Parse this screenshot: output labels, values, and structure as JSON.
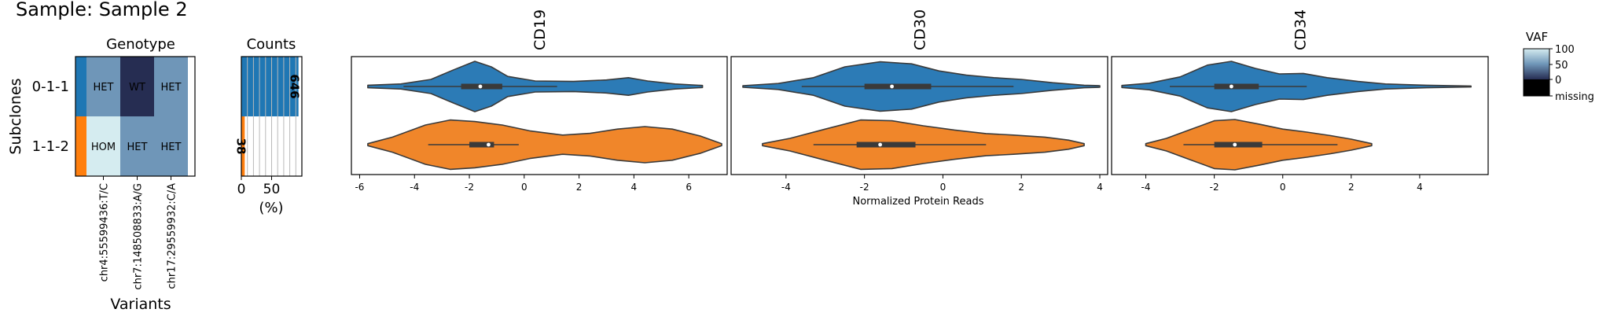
{
  "figure": {
    "title": "Sample: Sample 2",
    "ylabel": "Subclones",
    "xlabel_variants": "Variants"
  },
  "colors": {
    "clone_0": "#1f77b4",
    "clone_1": "#ff7f0e",
    "violin_0": "#2c7bb6",
    "violin_1": "#f0862a",
    "het": "#6f96b8",
    "wt": "#262d52",
    "hom": "#d5ecf0",
    "missing": "#000000"
  },
  "subclones": [
    "0-1-1",
    "1-1-2"
  ],
  "genotype": {
    "title": "Genotype",
    "variants": [
      "chr4:55599436:T/C",
      "chr7:148508833:A/G",
      "chr17:29559932:C/A"
    ],
    "cells": [
      [
        "HET",
        "WT",
        "HET"
      ],
      [
        "HOM",
        "HET",
        "HET"
      ]
    ]
  },
  "counts": {
    "title": "Counts",
    "xlabel": "(%)",
    "xticks": [
      0,
      50
    ],
    "xlim": [
      0,
      100
    ]
  },
  "colorbar": {
    "title": "VAF",
    "ticks": [
      "100",
      "50",
      "0",
      "missing"
    ]
  },
  "protein_xlabel": "Normalized Protein Reads",
  "chart_data": [
    {
      "type": "bar",
      "title": "Counts",
      "orientation": "horizontal",
      "categories": [
        "0-1-1",
        "1-1-2"
      ],
      "values": [
        94.4,
        5.6
      ],
      "labels": [
        "646",
        "38"
      ],
      "xlabel": "(%)",
      "xlim": [
        0,
        100
      ]
    },
    {
      "type": "heatmap",
      "title": "Genotype",
      "rows": [
        "0-1-1",
        "1-1-2"
      ],
      "columns": [
        "chr4:55599436:T/C",
        "chr7:148508833:A/G",
        "chr17:29559932:C/A"
      ],
      "values": [
        [
          "HET",
          "WT",
          "HET"
        ],
        [
          "HOM",
          "HET",
          "HET"
        ]
      ],
      "xlabel": "Variants",
      "ylabel": "Subclones"
    },
    {
      "type": "violin",
      "title": "CD19",
      "xlim": [
        -6.3,
        7.4
      ],
      "xticks": [
        -6,
        -4,
        -2,
        0,
        2,
        4,
        6
      ],
      "series": [
        {
          "name": "0-1-1",
          "profile": [
            [
              -5.7,
              0.05
            ],
            [
              -4.5,
              0.1
            ],
            [
              -3.4,
              0.28
            ],
            [
              -2.6,
              0.65
            ],
            [
              -1.8,
              1.0
            ],
            [
              -1.2,
              0.78
            ],
            [
              -0.6,
              0.4
            ],
            [
              0.4,
              0.22
            ],
            [
              1.8,
              0.2
            ],
            [
              3.0,
              0.26
            ],
            [
              3.8,
              0.35
            ],
            [
              4.5,
              0.22
            ],
            [
              5.5,
              0.1
            ],
            [
              6.5,
              0.04
            ]
          ],
          "box": {
            "q1": -2.3,
            "median": -1.6,
            "q3": -0.8,
            "whisker_low": -4.4,
            "whisker_high": 1.2
          }
        },
        {
          "name": "1-1-2",
          "profile": [
            [
              -5.7,
              0.04
            ],
            [
              -4.8,
              0.3
            ],
            [
              -3.6,
              0.78
            ],
            [
              -2.7,
              0.98
            ],
            [
              -1.8,
              0.92
            ],
            [
              -0.8,
              0.78
            ],
            [
              0.2,
              0.55
            ],
            [
              1.4,
              0.38
            ],
            [
              2.4,
              0.45
            ],
            [
              3.4,
              0.62
            ],
            [
              4.4,
              0.72
            ],
            [
              5.4,
              0.62
            ],
            [
              6.4,
              0.35
            ],
            [
              7.2,
              0.04
            ]
          ],
          "box": {
            "q1": -2.0,
            "median": -1.3,
            "q3": -1.1,
            "whisker_low": -3.5,
            "whisker_high": -0.2
          }
        }
      ]
    },
    {
      "type": "violin",
      "title": "CD30",
      "xlim": [
        -5.4,
        4.2
      ],
      "xticks": [
        -4,
        -2,
        0,
        2,
        4
      ],
      "series": [
        {
          "name": "0-1-1",
          "profile": [
            [
              -5.1,
              0.03
            ],
            [
              -4.2,
              0.12
            ],
            [
              -3.3,
              0.35
            ],
            [
              -2.5,
              0.78
            ],
            [
              -1.6,
              0.98
            ],
            [
              -0.8,
              0.9
            ],
            [
              -0.1,
              0.62
            ],
            [
              0.6,
              0.45
            ],
            [
              1.3,
              0.35
            ],
            [
              2.0,
              0.28
            ],
            [
              2.8,
              0.15
            ],
            [
              3.6,
              0.05
            ],
            [
              4.0,
              0.03
            ]
          ],
          "box": {
            "q1": -2.0,
            "median": -1.3,
            "q3": -0.3,
            "whisker_low": -3.6,
            "whisker_high": 1.8
          }
        },
        {
          "name": "1-1-2",
          "profile": [
            [
              -4.6,
              0.04
            ],
            [
              -3.9,
              0.25
            ],
            [
              -3.0,
              0.62
            ],
            [
              -2.1,
              0.98
            ],
            [
              -1.3,
              0.95
            ],
            [
              -0.5,
              0.75
            ],
            [
              0.3,
              0.58
            ],
            [
              1.1,
              0.44
            ],
            [
              1.8,
              0.38
            ],
            [
              2.6,
              0.3
            ],
            [
              3.2,
              0.18
            ],
            [
              3.6,
              0.04
            ]
          ],
          "box": {
            "q1": -2.2,
            "median": -1.6,
            "q3": -0.7,
            "whisker_low": -3.3,
            "whisker_high": 1.1
          }
        }
      ]
    },
    {
      "type": "violin",
      "title": "CD34",
      "xlim": [
        -5.0,
        6.0
      ],
      "xticks": [
        -4,
        -2,
        0,
        2,
        4
      ],
      "series": [
        {
          "name": "0-1-1",
          "profile": [
            [
              -4.7,
              0.04
            ],
            [
              -3.9,
              0.13
            ],
            [
              -3.0,
              0.38
            ],
            [
              -2.2,
              0.85
            ],
            [
              -1.5,
              1.0
            ],
            [
              -0.8,
              0.72
            ],
            [
              -0.1,
              0.5
            ],
            [
              0.6,
              0.52
            ],
            [
              1.3,
              0.35
            ],
            [
              2.2,
              0.2
            ],
            [
              3.0,
              0.1
            ],
            [
              4.2,
              0.05
            ],
            [
              5.5,
              0.02
            ]
          ],
          "box": {
            "q1": -2.0,
            "median": -1.5,
            "q3": -0.7,
            "whisker_low": -3.3,
            "whisker_high": 0.7
          }
        },
        {
          "name": "1-1-2",
          "profile": [
            [
              -4.0,
              0.04
            ],
            [
              -3.4,
              0.25
            ],
            [
              -2.7,
              0.6
            ],
            [
              -2.0,
              0.95
            ],
            [
              -1.4,
              1.0
            ],
            [
              -0.7,
              0.82
            ],
            [
              0.0,
              0.62
            ],
            [
              0.7,
              0.5
            ],
            [
              1.4,
              0.36
            ],
            [
              2.0,
              0.22
            ],
            [
              2.6,
              0.04
            ]
          ],
          "box": {
            "q1": -2.0,
            "median": -1.4,
            "q3": -0.6,
            "whisker_low": -2.9,
            "whisker_high": 1.6
          }
        }
      ]
    }
  ]
}
